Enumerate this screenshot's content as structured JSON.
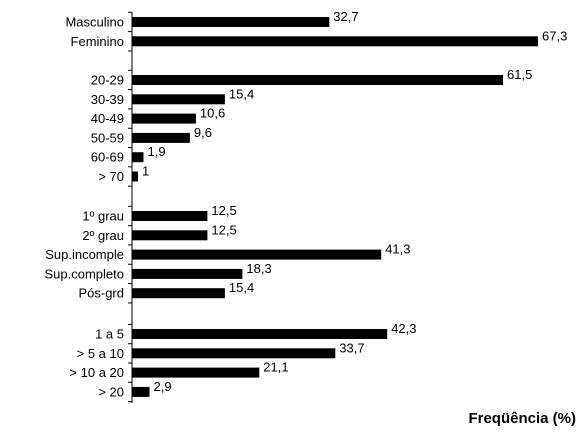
{
  "chart_data": {
    "type": "bar",
    "orientation": "horizontal",
    "xlabel": "Freqüência (%)",
    "xlim": [
      0,
      67.3
    ],
    "grid": false,
    "groups": [
      {
        "categories": [
          "Masculino",
          "Feminino"
        ],
        "values": [
          32.7,
          67.3
        ],
        "labels": [
          "32,7",
          "67,3"
        ]
      },
      {
        "categories": [
          "20-29",
          "30-39",
          "40-49",
          "50-59",
          "60-69",
          "> 70"
        ],
        "values": [
          61.5,
          15.4,
          10.6,
          9.6,
          1.9,
          1
        ],
        "labels": [
          "61,5",
          "15,4",
          "10,6",
          "9,6",
          "1,9",
          "1"
        ]
      },
      {
        "categories": [
          "1º grau",
          "2º grau",
          "Sup.incomple",
          "Sup.completo",
          "Pós-grd"
        ],
        "values": [
          12.5,
          12.5,
          41.3,
          18.3,
          15.4
        ],
        "labels": [
          "12,5",
          "12,5",
          "41,3",
          "18,3",
          "15,4"
        ]
      },
      {
        "categories": [
          "1 a 5",
          "> 5 a 10",
          "> 10 a 20",
          "> 20"
        ],
        "values": [
          42.3,
          33.7,
          21.1,
          2.9
        ],
        "labels": [
          "42,3",
          "33,7",
          "21,1",
          "2,9"
        ]
      }
    ],
    "colors": {
      "bar": "#000000",
      "axis": "#000000"
    }
  }
}
